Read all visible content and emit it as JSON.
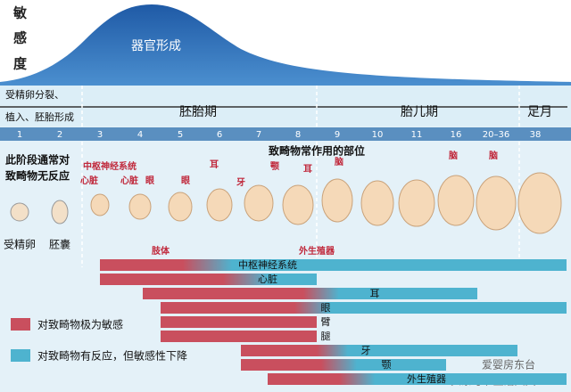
{
  "sensitivity_axis": [
    "敏",
    "感",
    "度"
  ],
  "curve_label": "器官形成",
  "periods": {
    "early": [
      "受精卵分裂、",
      "植入、胚胎形成"
    ],
    "embryonic": "胚胎期",
    "fetal": "胎儿期",
    "term": "足月"
  },
  "weeks": [
    "1",
    "2",
    "3",
    "4",
    "5",
    "6",
    "7",
    "8",
    "9",
    "10",
    "11",
    "16",
    "20–36",
    "38"
  ],
  "early_note": [
    "此阶段通常对",
    "致畸物无反应"
  ],
  "early_stages": [
    "受精卵",
    "胚囊"
  ],
  "sites_title": "致畸物常作用的部位",
  "site_labels": [
    "中枢神经系统",
    "心脏",
    "心脏",
    "眼",
    "眼",
    "耳",
    "牙",
    "颚",
    "耳",
    "脑",
    "肢体",
    "外生殖器",
    "脑",
    "脑"
  ],
  "bars": [
    "中枢神经系统",
    "心脏",
    "耳",
    "眼",
    "臂",
    "腿",
    "牙",
    "颚",
    "外生殖器"
  ],
  "legend": [
    "对致畸物极为敏感",
    "对致畸物有反应，但敏感性下降"
  ],
  "watermark": [
    "爱婴房东台",
    "头条号 / 生活大夫"
  ]
}
